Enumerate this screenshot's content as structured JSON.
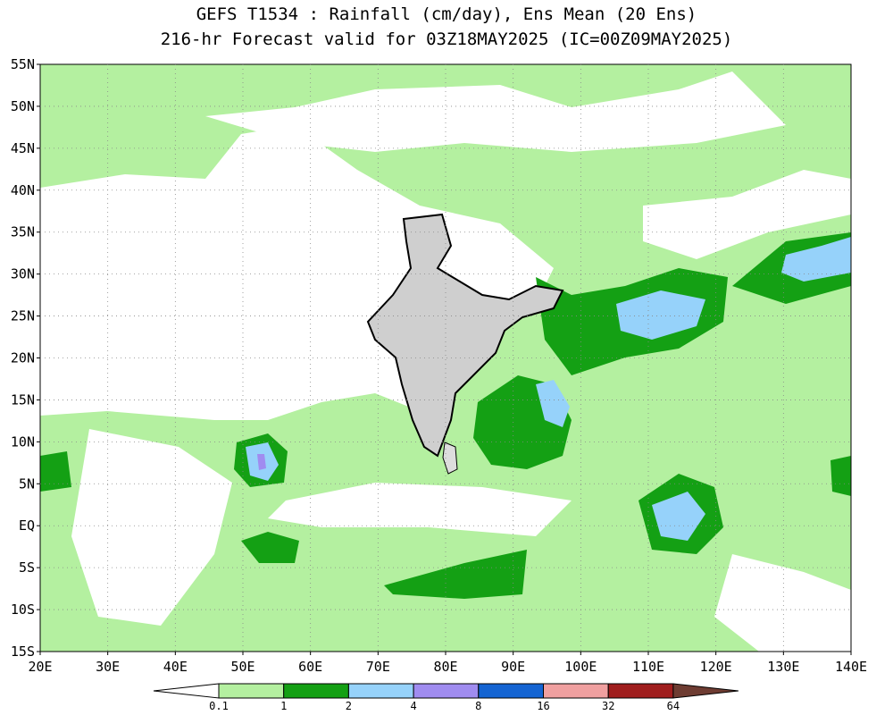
{
  "header": {
    "title": [
      "GEFS T1534 : Rainfall (cm/day), Ens Mean (20 Ens)",
      "216-hr Forecast valid for 03Z18MAY2025 (IC=00Z09MAY2025)"
    ]
  },
  "map": {
    "lat_labels": [
      "55N",
      "50N",
      "45N",
      "40N",
      "35N",
      "30N",
      "25N",
      "20N",
      "15N",
      "10N",
      "5N",
      "EQ",
      "5S",
      "10S",
      "15S"
    ],
    "lon_labels": [
      "20E",
      "30E",
      "40E",
      "50E",
      "60E",
      "70E",
      "80E",
      "90E",
      "100E",
      "110E",
      "120E",
      "130E",
      "140E"
    ]
  },
  "colorbar": {
    "labels": [
      "0.1",
      "1",
      "2",
      "4",
      "8",
      "16",
      "32",
      "64"
    ],
    "colors": [
      "#ffffff",
      "#b4f0a0",
      "#14a014",
      "#96d2fa",
      "#a08cf0",
      "#1464d2",
      "#f0a0a0",
      "#a01e1e",
      "#6e3c32"
    ]
  }
}
